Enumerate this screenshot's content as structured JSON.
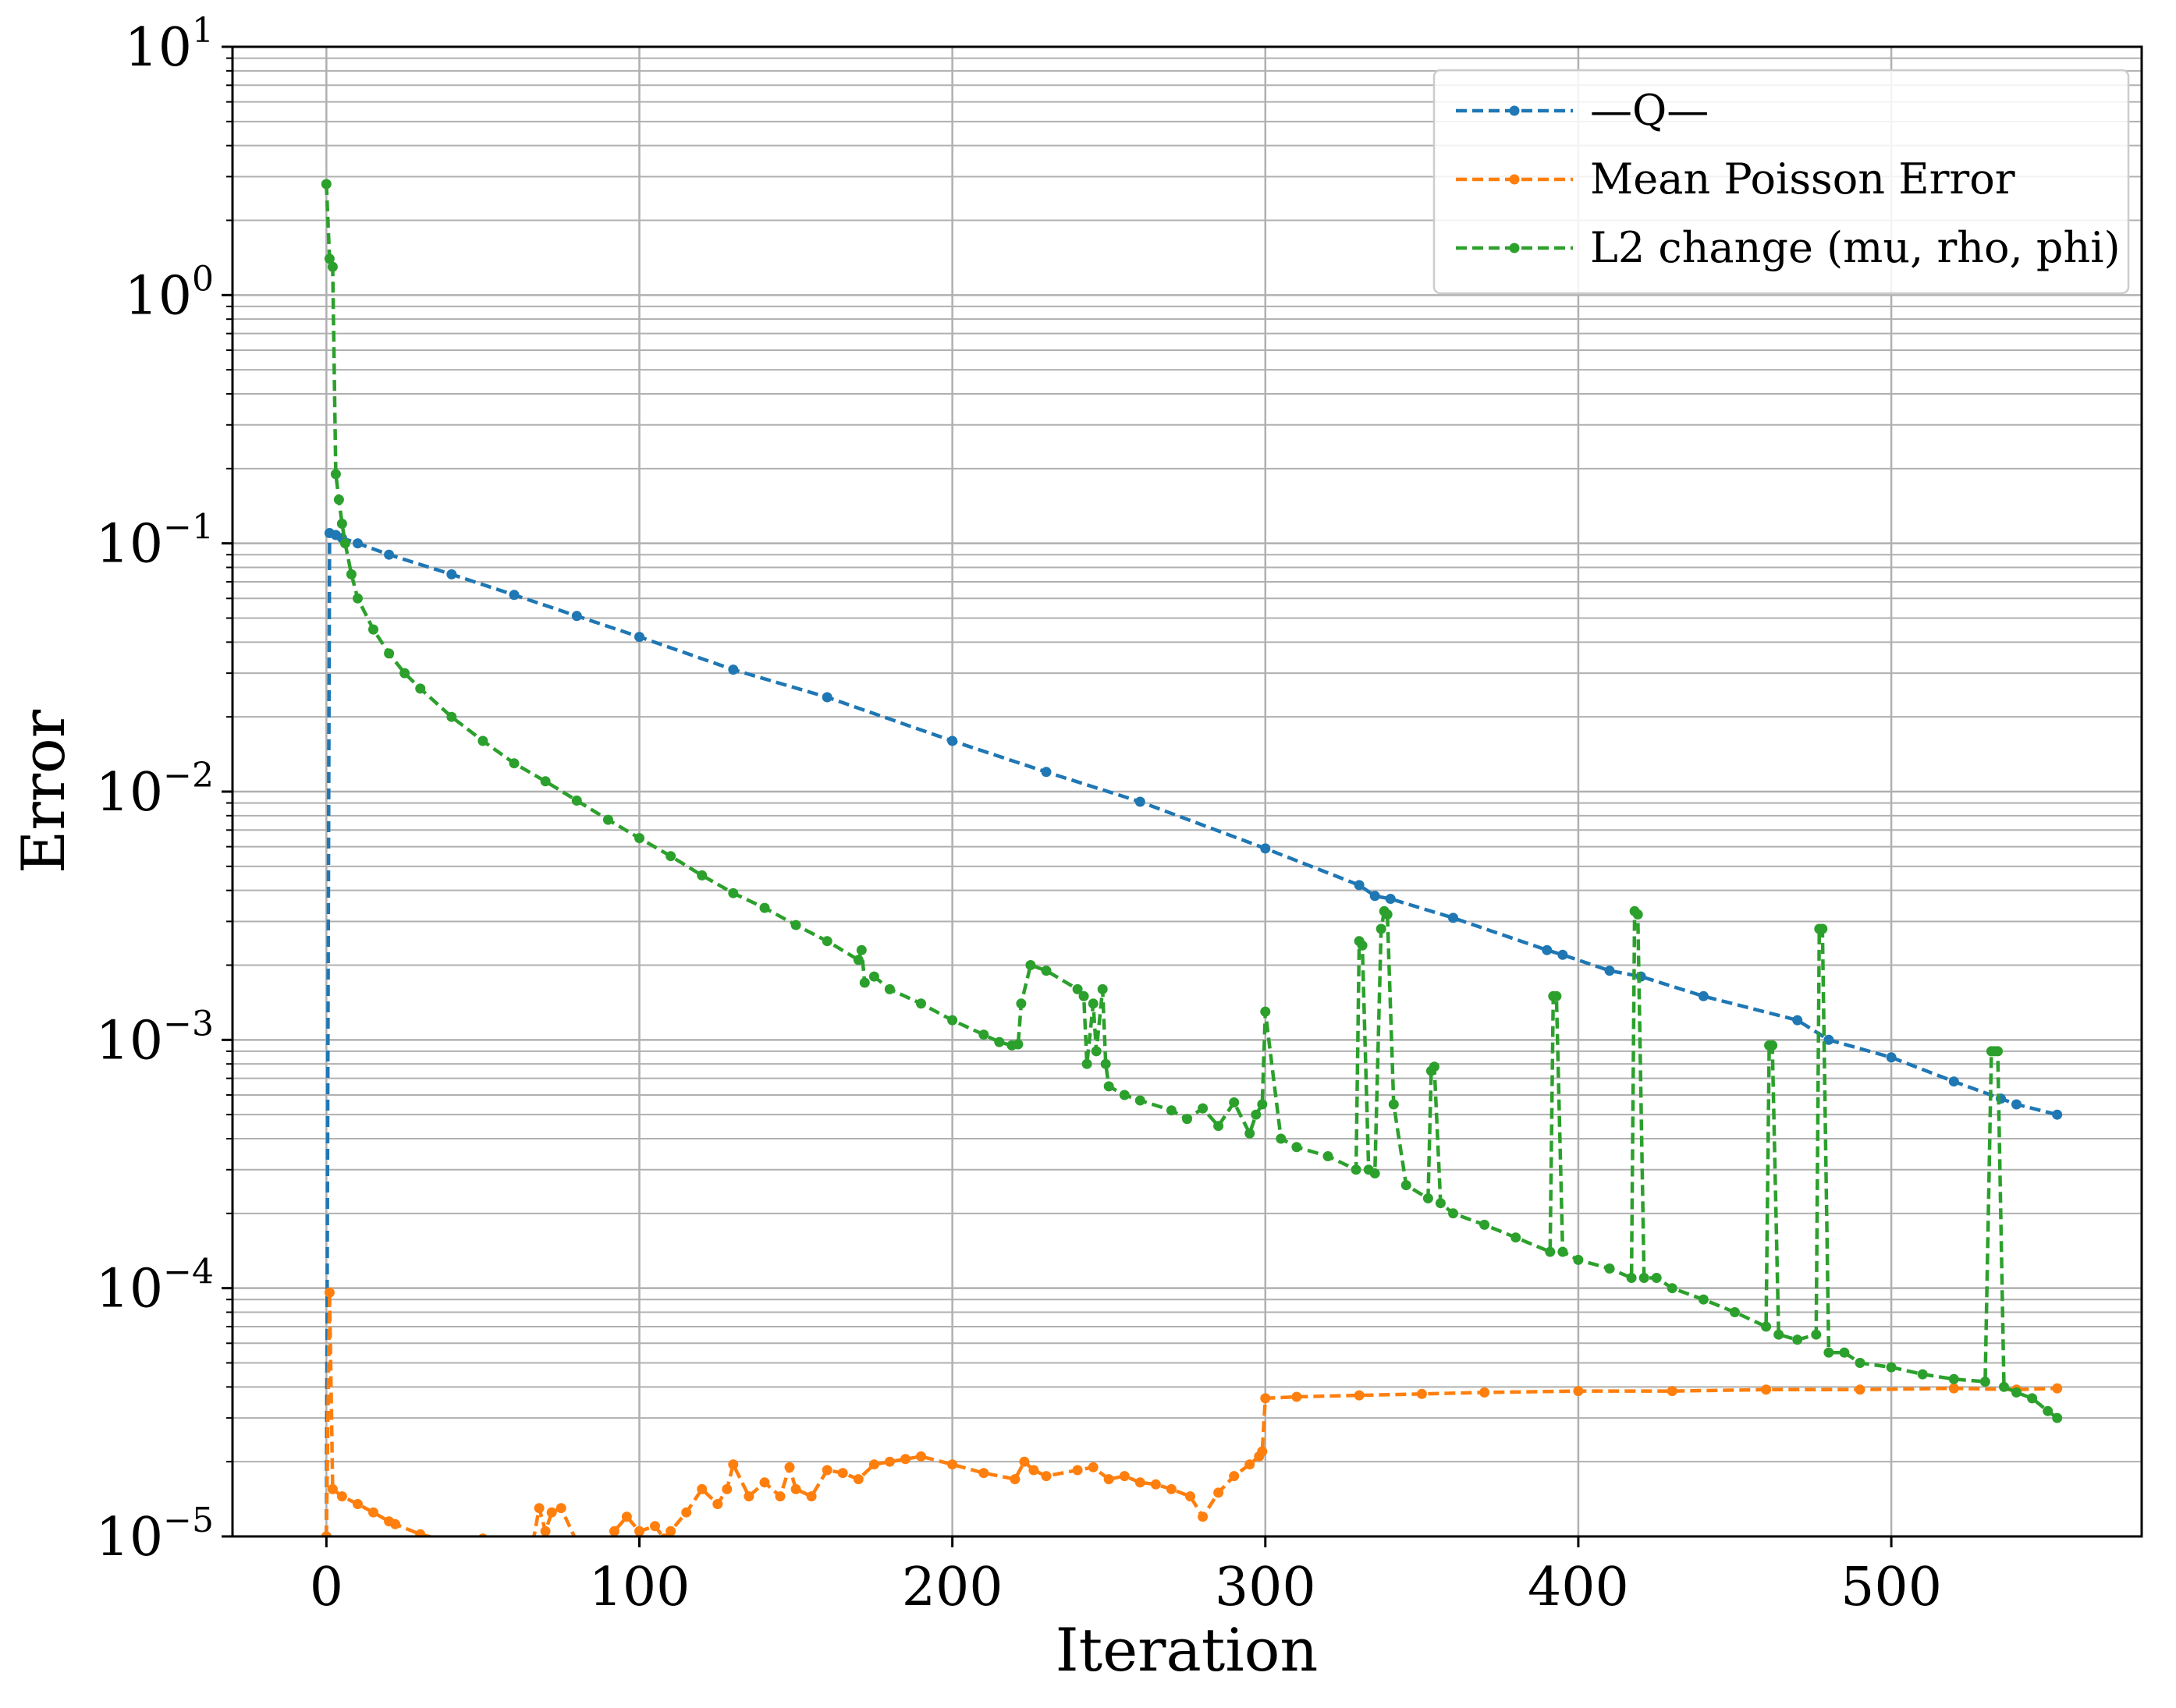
{
  "chart_data": {
    "type": "line",
    "title": "",
    "xlabel": "Iteration",
    "ylabel": "Error",
    "x_scale": "linear",
    "y_scale": "log",
    "xlim": [
      -30,
      580
    ],
    "ylim": [
      1e-05,
      10
    ],
    "x_ticks": [
      0,
      100,
      200,
      300,
      400,
      500
    ],
    "x_tick_labels": [
      "0",
      "100",
      "200",
      "300",
      "400",
      "500"
    ],
    "y_ticks": [
      1e-05,
      0.0001,
      0.001,
      0.01,
      0.1,
      1,
      10
    ],
    "y_tick_labels": [
      {
        "base": "10",
        "exp": "−5"
      },
      {
        "base": "10",
        "exp": "−4"
      },
      {
        "base": "10",
        "exp": "−3"
      },
      {
        "base": "10",
        "exp": "−2"
      },
      {
        "base": "10",
        "exp": "−1"
      },
      {
        "base": "10",
        "exp": "0"
      },
      {
        "base": "10",
        "exp": "1"
      }
    ],
    "grid": true,
    "legend_position": "top-right",
    "series": [
      {
        "name": "—Q—",
        "color": "#1f77b4",
        "linestyle": "dashed",
        "marker": "dot",
        "x": [
          0,
          1,
          3,
          5,
          10,
          20,
          40,
          60,
          80,
          100,
          130,
          160,
          200,
          230,
          260,
          300,
          330,
          335,
          340,
          360,
          390,
          395,
          410,
          420,
          440,
          470,
          480,
          500,
          520,
          535,
          540,
          553
        ],
        "y": [
          1e-05,
          0.11,
          0.108,
          0.105,
          0.1,
          0.09,
          0.075,
          0.062,
          0.051,
          0.042,
          0.031,
          0.024,
          0.016,
          0.012,
          0.0091,
          0.0059,
          0.0042,
          0.0038,
          0.0037,
          0.0031,
          0.0023,
          0.0022,
          0.0019,
          0.0018,
          0.0015,
          0.0012,
          0.001,
          0.00085,
          0.00068,
          0.00058,
          0.00055,
          0.0005
        ]
      },
      {
        "name": "Mean Poisson Error",
        "color": "#ff7f0e",
        "linestyle": "dashed",
        "marker": "dot",
        "x": [
          0,
          1,
          2,
          5,
          10,
          15,
          20,
          22,
          30,
          40,
          50,
          60,
          66,
          68,
          70,
          72,
          75,
          80,
          90,
          92,
          96,
          100,
          105,
          108,
          110,
          115,
          120,
          125,
          128,
          130,
          135,
          140,
          145,
          148,
          150,
          155,
          160,
          165,
          170,
          175,
          180,
          185,
          190,
          200,
          210,
          220,
          223,
          226,
          230,
          240,
          245,
          250,
          255,
          260,
          265,
          270,
          276,
          280,
          285,
          290,
          295,
          298,
          299,
          300,
          310,
          330,
          350,
          370,
          400,
          430,
          460,
          490,
          520,
          540,
          553
        ],
        "y": [
          1e-05,
          9.6e-05,
          1.55e-05,
          1.45e-05,
          1.35e-05,
          1.25e-05,
          1.15e-05,
          1.12e-05,
          1.02e-05,
          9.5e-06,
          9.8e-06,
          9e-06,
          9.5e-06,
          1.3e-05,
          1.05e-05,
          1.25e-05,
          1.3e-05,
          9.5e-06,
          9e-06,
          1.05e-05,
          1.2e-05,
          1.05e-05,
          1.1e-05,
          9.8e-06,
          1.05e-05,
          1.25e-05,
          1.55e-05,
          1.35e-05,
          1.55e-05,
          1.95e-05,
          1.45e-05,
          1.65e-05,
          1.45e-05,
          1.9e-05,
          1.55e-05,
          1.45e-05,
          1.85e-05,
          1.8e-05,
          1.7e-05,
          1.95e-05,
          2e-05,
          2.05e-05,
          2.1e-05,
          1.95e-05,
          1.8e-05,
          1.7e-05,
          2e-05,
          1.85e-05,
          1.75e-05,
          1.85e-05,
          1.9e-05,
          1.7e-05,
          1.75e-05,
          1.65e-05,
          1.62e-05,
          1.55e-05,
          1.45e-05,
          1.2e-05,
          1.5e-05,
          1.75e-05,
          1.95e-05,
          2.1e-05,
          2.2e-05,
          3.6e-05,
          3.65e-05,
          3.7e-05,
          3.75e-05,
          3.8e-05,
          3.85e-05,
          3.85e-05,
          3.9e-05,
          3.9e-05,
          3.95e-05,
          3.9e-05,
          3.95e-05
        ]
      },
      {
        "name": "L2 change (mu, rho, phi)",
        "color": "#2ca02c",
        "linestyle": "dashed",
        "marker": "dot",
        "x": [
          0,
          1,
          2,
          3,
          4,
          5,
          6,
          8,
          10,
          15,
          20,
          25,
          30,
          40,
          50,
          60,
          70,
          80,
          90,
          100,
          110,
          120,
          130,
          140,
          150,
          160,
          170,
          171,
          172,
          175,
          180,
          190,
          200,
          210,
          215,
          219,
          221,
          222,
          225,
          230,
          240,
          242,
          243,
          245,
          246,
          248,
          249,
          250,
          255,
          260,
          270,
          275,
          280,
          285,
          290,
          295,
          297,
          299,
          300,
          305,
          310,
          320,
          329,
          330,
          331,
          333,
          335,
          337,
          338,
          339,
          341,
          345,
          352,
          353,
          354,
          356,
          360,
          370,
          380,
          391,
          392,
          393,
          395,
          400,
          410,
          417,
          418,
          419,
          421,
          425,
          430,
          440,
          450,
          460,
          461,
          462,
          464,
          470,
          476,
          477,
          478,
          480,
          485,
          490,
          500,
          510,
          520,
          530,
          532,
          533,
          534,
          536,
          540,
          545,
          550,
          553
        ],
        "y": [
          2.8,
          1.4,
          1.3,
          0.19,
          0.15,
          0.12,
          0.1,
          0.075,
          0.06,
          0.045,
          0.036,
          0.03,
          0.026,
          0.02,
          0.016,
          0.013,
          0.011,
          0.0092,
          0.0077,
          0.0065,
          0.0055,
          0.0046,
          0.0039,
          0.0034,
          0.0029,
          0.0025,
          0.0021,
          0.0023,
          0.0017,
          0.0018,
          0.0016,
          0.0014,
          0.0012,
          0.00105,
          0.00098,
          0.00095,
          0.00096,
          0.0014,
          0.002,
          0.0019,
          0.0016,
          0.0015,
          0.0008,
          0.0014,
          0.0009,
          0.0016,
          0.0008,
          0.00065,
          0.0006,
          0.00057,
          0.00052,
          0.00048,
          0.00053,
          0.00045,
          0.00056,
          0.00042,
          0.0005,
          0.00055,
          0.0013,
          0.0004,
          0.00037,
          0.00034,
          0.0003,
          0.0025,
          0.0024,
          0.0003,
          0.00029,
          0.0028,
          0.0033,
          0.0032,
          0.00055,
          0.00026,
          0.00023,
          0.00075,
          0.00078,
          0.00022,
          0.0002,
          0.00018,
          0.00016,
          0.00014,
          0.0015,
          0.0015,
          0.00014,
          0.00013,
          0.00012,
          0.00011,
          0.0033,
          0.0032,
          0.00011,
          0.00011,
          0.0001,
          9e-05,
          8e-05,
          7e-05,
          0.00095,
          0.00095,
          6.5e-05,
          6.2e-05,
          6.5e-05,
          0.0028,
          0.0028,
          5.5e-05,
          5.5e-05,
          5e-05,
          4.8e-05,
          4.5e-05,
          4.3e-05,
          4.2e-05,
          0.0009,
          0.0009,
          0.0009,
          4e-05,
          3.8e-05,
          3.6e-05,
          3.2e-05,
          3e-05
        ]
      }
    ]
  }
}
